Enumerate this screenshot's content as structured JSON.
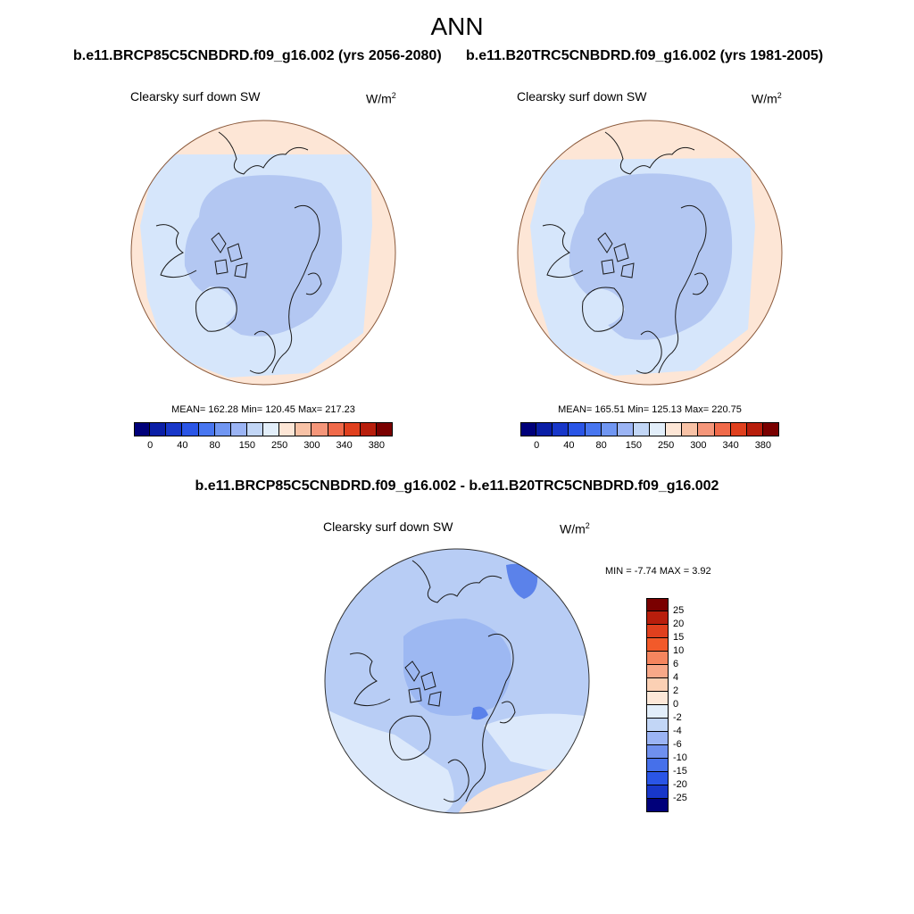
{
  "figure": {
    "title": "ANN",
    "case1_title": "b.e11.BRCP85C5CNBDRD.f09_g16.002 (yrs 2056-2080)",
    "case2_title": "b.e11.B20TRC5CNBDRD.f09_g16.002 (yrs 1981-2005)",
    "diff_title": "b.e11.BRCP85C5CNBDRD.f09_g16.002 - b.e11.B20TRC5CNBDRD.f09_g16.002"
  },
  "panels": [
    {
      "variable": "Clearsky surf down SW",
      "units_base": "W/m",
      "units_sup": "2",
      "stats": "MEAN= 162.28  Min= 120.45  Max= 217.23"
    },
    {
      "variable": "Clearsky surf down SW",
      "units_base": "W/m",
      "units_sup": "2",
      "stats": "MEAN= 165.51  Min= 125.13  Max= 220.75"
    },
    {
      "variable": "Clearsky surf down SW",
      "units_base": "W/m",
      "units_sup": "2",
      "stats": "MIN =  -7.74 MAX =   3.92"
    }
  ],
  "colorbar_main": {
    "labels": [
      "0",
      "40",
      "80",
      "150",
      "250",
      "300",
      "340",
      "380"
    ],
    "colors": [
      "#00007a",
      "#0a1ea6",
      "#1837c9",
      "#2a55e6",
      "#4876f0",
      "#7096f2",
      "#9bb4f4",
      "#c2d6f6",
      "#e2eefa",
      "#fde6d6",
      "#f8c2a6",
      "#f5967a",
      "#f06a4a",
      "#e0401e",
      "#b81e0c",
      "#7a0000"
    ]
  },
  "colorbar_diff": {
    "labels": [
      "25",
      "20",
      "15",
      "10",
      "6",
      "4",
      "2",
      "0",
      "-2",
      "-4",
      "-6",
      "-10",
      "-15",
      "-20",
      "-25"
    ],
    "colors": [
      "#7a0000",
      "#b81e0c",
      "#e0401e",
      "#f25a2a",
      "#f5855e",
      "#f8a888",
      "#fbd0b4",
      "#fde8d8",
      "#e2eefa",
      "#c2d6f6",
      "#9bb4f4",
      "#6f90ee",
      "#4670ea",
      "#2a55e6",
      "#1837c9",
      "#00007a"
    ]
  },
  "map_colors": {
    "edge": "#fde6d6",
    "outer": "#d6e6fb",
    "inner": "#b3c7f2",
    "diff_base": "#b8cdf5",
    "diff_light": "#dce9fb",
    "diff_mid": "#9db8f2",
    "diff_dark": "#5b82ea",
    "diff_warm": "#fbe3d3",
    "coast": "#1a1a1a",
    "rim": "#8b5a3c"
  }
}
